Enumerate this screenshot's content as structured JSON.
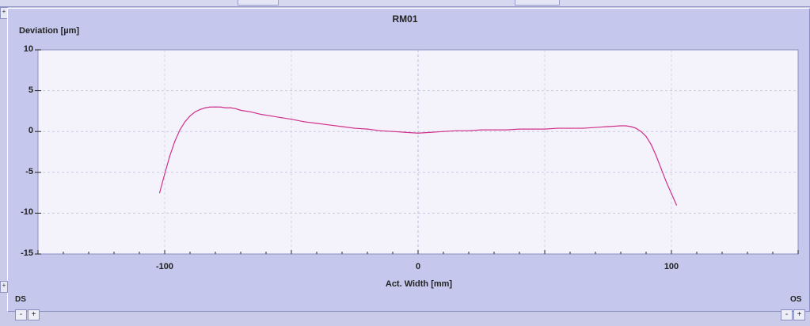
{
  "chart_data": {
    "type": "line",
    "title": "RM01",
    "ylabel": "Deviation [µm]",
    "xlabel": "Act. Width [mm]",
    "xlim": [
      -150,
      150
    ],
    "ylim": [
      -15,
      10
    ],
    "x_ticks": [
      -100,
      0,
      100
    ],
    "y_ticks": [
      10,
      5,
      0,
      -5,
      -10,
      -15
    ],
    "grid": true,
    "series": [
      {
        "color": "#d0308a",
        "x": [
          -102,
          -100,
          -98,
          -96,
          -94,
          -92,
          -90,
          -88,
          -86,
          -84,
          -82,
          -80,
          -78,
          -76,
          -74,
          -72,
          -70,
          -66,
          -62,
          -58,
          -54,
          -50,
          -45,
          -40,
          -35,
          -30,
          -25,
          -20,
          -15,
          -10,
          -5,
          0,
          5,
          10,
          15,
          20,
          25,
          30,
          35,
          40,
          45,
          50,
          55,
          60,
          65,
          70,
          75,
          80,
          82,
          84,
          86,
          88,
          90,
          92,
          94,
          96,
          98,
          100,
          102
        ],
        "y": [
          -7.5,
          -5.2,
          -3.0,
          -1.2,
          0.2,
          1.2,
          1.9,
          2.4,
          2.7,
          2.9,
          3.0,
          3.0,
          3.0,
          2.9,
          2.9,
          2.8,
          2.6,
          2.4,
          2.1,
          1.9,
          1.7,
          1.5,
          1.2,
          1.0,
          0.8,
          0.6,
          0.4,
          0.3,
          0.1,
          0.0,
          -0.1,
          -0.2,
          -0.1,
          0.0,
          0.1,
          0.1,
          0.2,
          0.2,
          0.2,
          0.3,
          0.3,
          0.3,
          0.4,
          0.4,
          0.4,
          0.5,
          0.6,
          0.7,
          0.7,
          0.6,
          0.4,
          0.0,
          -0.6,
          -1.6,
          -3.0,
          -4.6,
          -6.2,
          -7.6,
          -9.0
        ]
      }
    ]
  },
  "labels": {
    "ds": "DS",
    "os": "OS",
    "minus": "-",
    "plus": "+",
    "left_top_ctrl": "+",
    "left_bottom_ctrl": "+"
  }
}
